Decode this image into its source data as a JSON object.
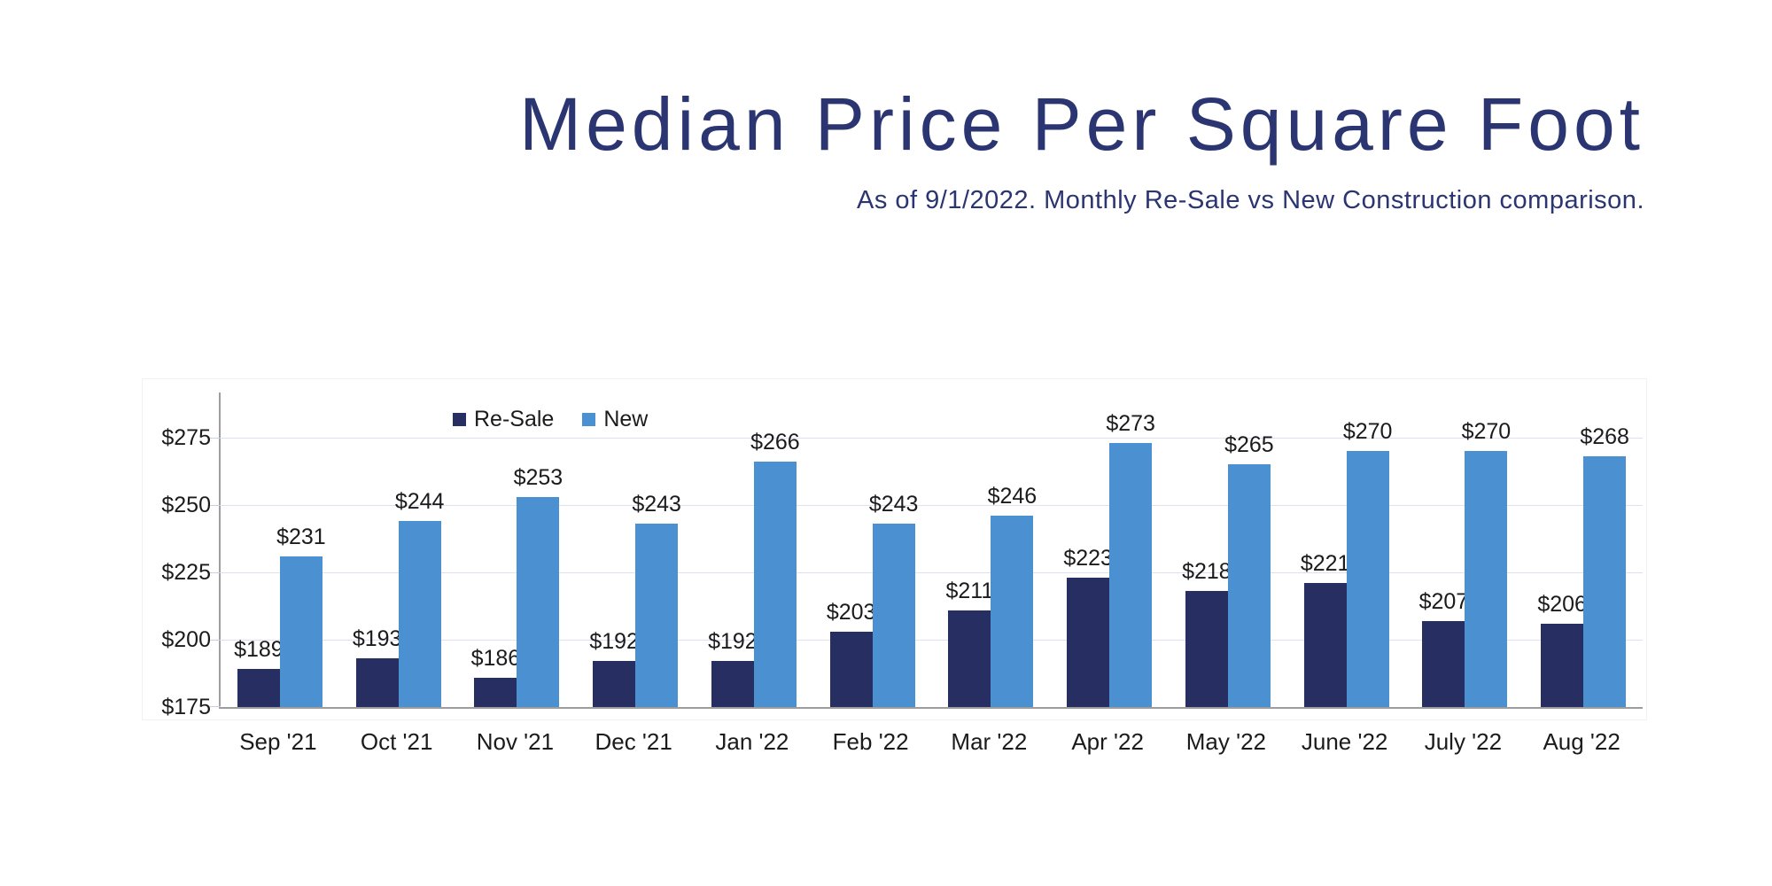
{
  "header": {
    "title": "Median Price Per Square Foot",
    "subtitle": "As of 9/1/2022. Monthly Re-Sale vs New Construction comparison."
  },
  "colors": {
    "title_text": "#2B3571",
    "resale_bar": "#272F62",
    "new_bar": "#4B90D0",
    "gridline": "#DCE2EF",
    "axis_line": "#9D9D9D",
    "value_label": "#1B1B1B"
  },
  "chart_data": {
    "type": "bar",
    "title": "Median Price Per Square Foot",
    "subtitle": "As of 9/1/2022. Monthly Re-Sale vs New Construction comparison.",
    "categories": [
      "Sep '21",
      "Oct '21",
      "Nov '21",
      "Dec '21",
      "Jan '22",
      "Feb '22",
      "Mar '22",
      "Apr '22",
      "May '22",
      "June '22",
      "July '22",
      "Aug '22"
    ],
    "series": [
      {
        "name": "Re-Sale",
        "color": "#272F62",
        "values": [
          189,
          193,
          186,
          192,
          192,
          203,
          211,
          223,
          218,
          221,
          207,
          206
        ]
      },
      {
        "name": "New",
        "color": "#4B90D0",
        "values": [
          231,
          244,
          253,
          243,
          266,
          243,
          246,
          273,
          265,
          270,
          270,
          268
        ]
      }
    ],
    "value_prefix": "$",
    "data_labels": true,
    "y_ticks": [
      {
        "label": "$175",
        "value": 175
      },
      {
        "label": "$200",
        "value": 200
      },
      {
        "label": "$225",
        "value": 225
      },
      {
        "label": "$250",
        "value": 250
      },
      {
        "label": "$275",
        "value": 275
      }
    ],
    "y_gridlines": [
      200,
      225,
      250,
      275
    ],
    "ylim": [
      175,
      292
    ],
    "grid": true,
    "legend_position": "top-inside-left"
  }
}
